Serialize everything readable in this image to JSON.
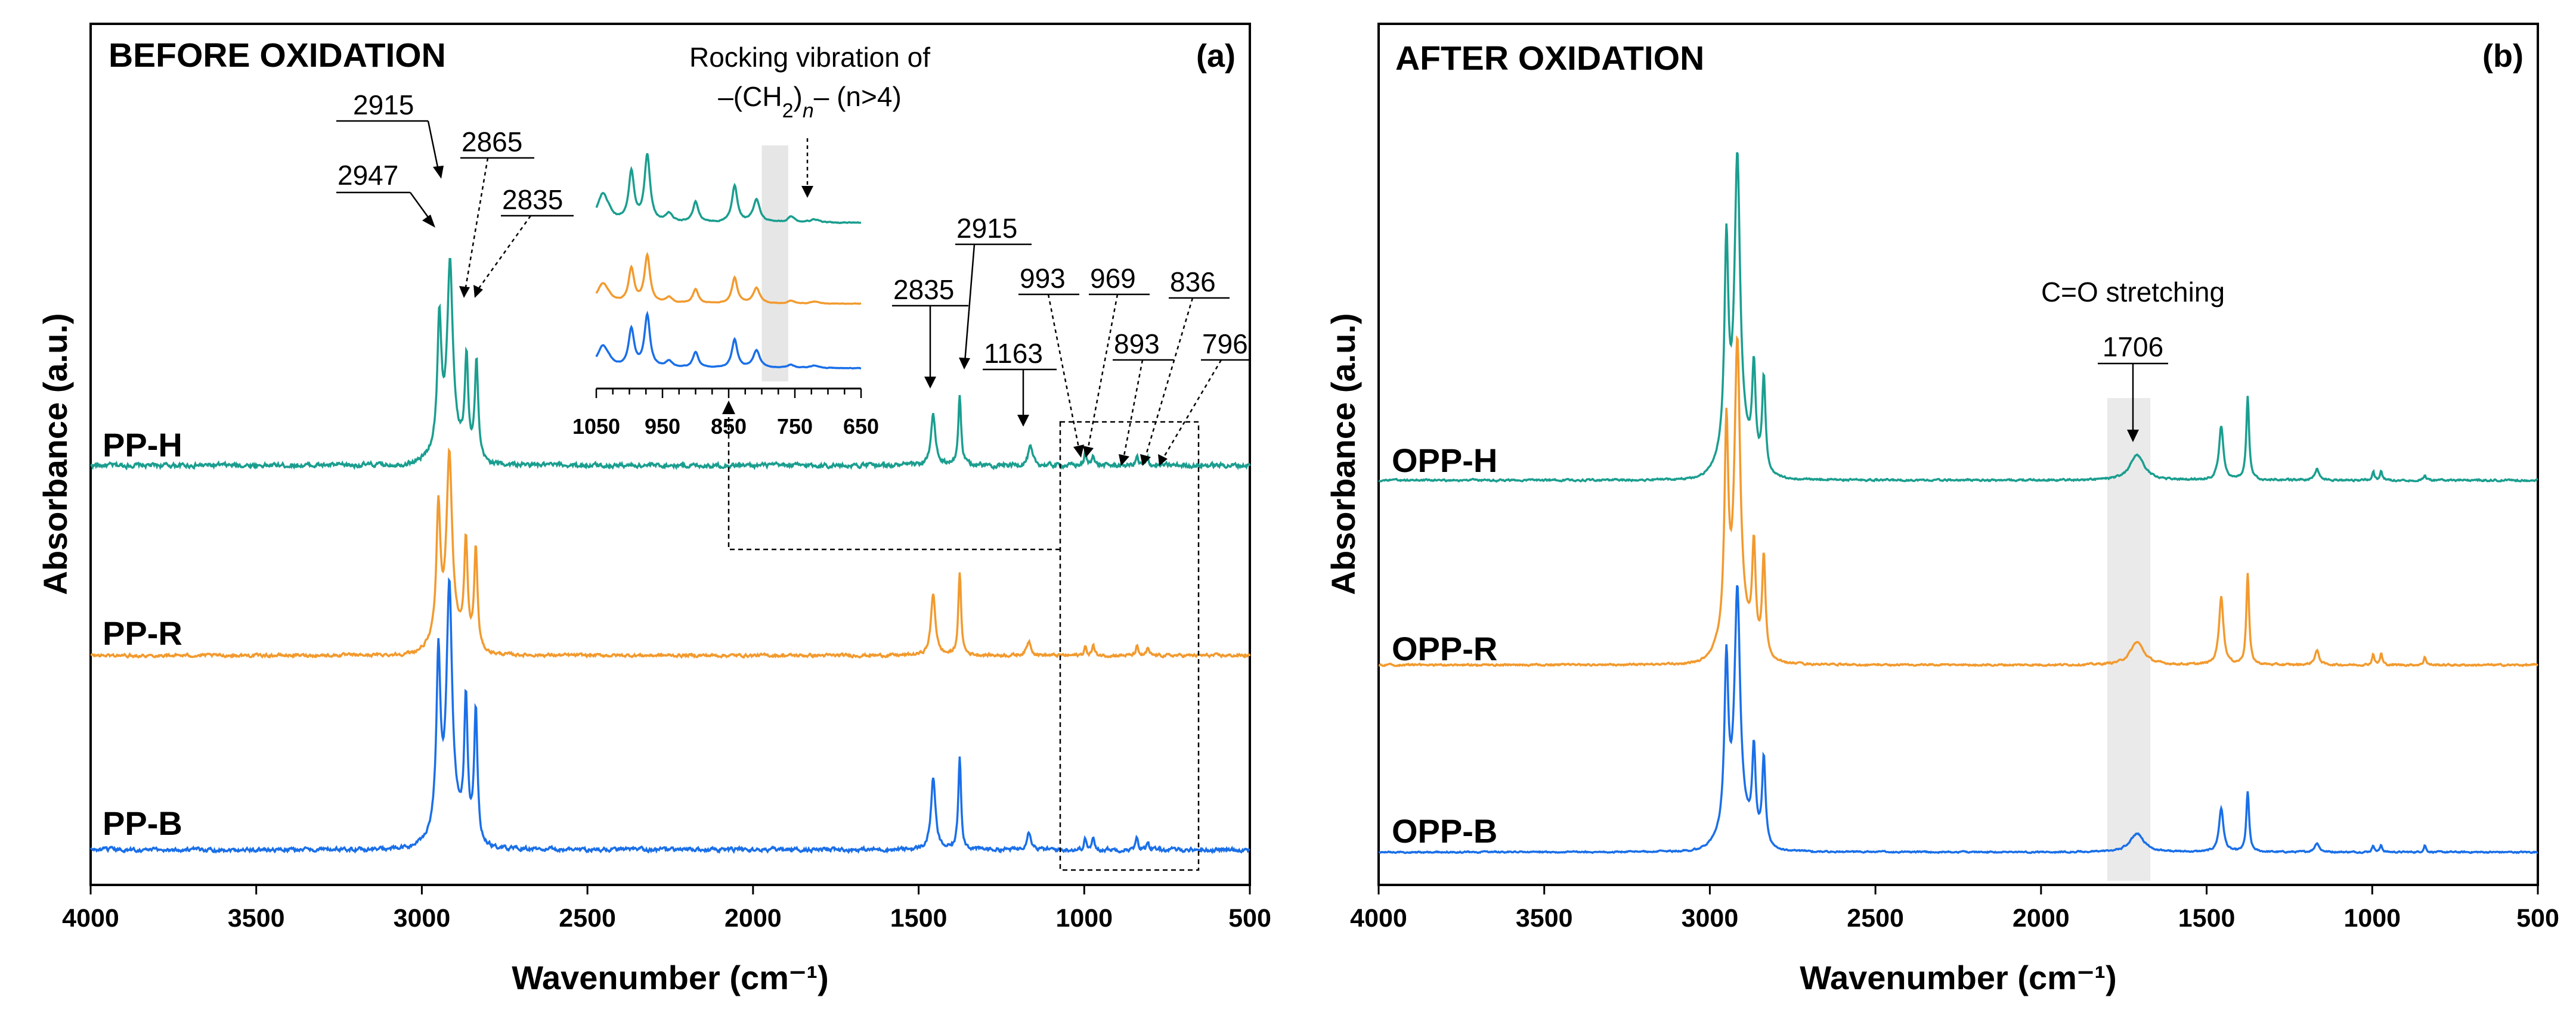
{
  "chart_data": [
    {
      "type": "line",
      "panel": "a",
      "title": "BEFORE OXIDATION",
      "letter": "(a)",
      "xlabel": "Wavenumber (cm⁻¹)",
      "ylabel": "Absorbance (a.u.)",
      "xlim": [
        4000,
        500
      ],
      "xticks": [
        "4000",
        "3500",
        "3000",
        "2500",
        "2000",
        "1500",
        "1000",
        "500"
      ],
      "series": [
        {
          "name": "PP-H",
          "color": "#1a9e8f",
          "offset": 2.0,
          "peaks": [
            [
              2947,
              0.72,
              7
            ],
            [
              2915,
              1.0,
              10
            ],
            [
              2865,
              0.55,
              6
            ],
            [
              2835,
              0.55,
              6
            ],
            [
              1456,
              0.28,
              8
            ],
            [
              1376,
              0.4,
              5
            ],
            [
              1163,
              0.1,
              8
            ],
            [
              997,
              0.07,
              4
            ],
            [
              973,
              0.07,
              4
            ],
            [
              841,
              0.05,
              4
            ],
            [
              808,
              0.04,
              4
            ]
          ],
          "noise": 0.012
        },
        {
          "name": "PP-R",
          "color": "#f29a2e",
          "offset": 1.0,
          "peaks": [
            [
              2950,
              0.72,
              7
            ],
            [
              2917,
              1.0,
              10
            ],
            [
              2867,
              0.57,
              6
            ],
            [
              2837,
              0.57,
              6
            ],
            [
              1456,
              0.35,
              8
            ],
            [
              1376,
              0.46,
              5
            ],
            [
              1167,
              0.08,
              8
            ],
            [
              997,
              0.05,
              4
            ],
            [
              973,
              0.06,
              4
            ],
            [
              841,
              0.05,
              4
            ],
            [
              808,
              0.04,
              4
            ]
          ],
          "noise": 0.008
        },
        {
          "name": "PP-B",
          "color": "#1a6fe8",
          "offset": 0.0,
          "peaks": [
            [
              2950,
              0.72,
              7
            ],
            [
              2917,
              1.0,
              10
            ],
            [
              2867,
              0.57,
              6
            ],
            [
              2837,
              0.57,
              6
            ],
            [
              1456,
              0.31,
              8
            ],
            [
              1376,
              0.4,
              5
            ],
            [
              1167,
              0.08,
              8
            ],
            [
              997,
              0.05,
              4
            ],
            [
              973,
              0.05,
              4
            ],
            [
              841,
              0.05,
              4
            ],
            [
              808,
              0.04,
              4
            ]
          ],
          "noise": 0.008
        }
      ],
      "peak_annotations": [
        "2947",
        "2915",
        "2865",
        "2835",
        "2835",
        "2915",
        "1163",
        "993",
        "969",
        "893",
        "836",
        "796"
      ],
      "inset": {
        "title_line1": "Rocking vibration of",
        "title_line2": "–(CH₂)ₙ– (n>4)",
        "xlim": [
          1050,
          650
        ],
        "xticks": [
          "1050",
          "950",
          "850",
          "750",
          "650"
        ],
        "highlight_range": [
          760,
          800
        ]
      }
    },
    {
      "type": "line",
      "panel": "b",
      "title": "AFTER OXIDATION",
      "letter": "(b)",
      "xlabel": "Wavenumber (cm⁻¹)",
      "ylabel": "Absorbance (a.u.)",
      "xlim": [
        4000,
        500
      ],
      "xticks": [
        "4000",
        "3500",
        "3000",
        "2500",
        "2000",
        "1500",
        "1000",
        "500"
      ],
      "series": [
        {
          "name": "OPP-H",
          "color": "#1a9e8f",
          "offset": 2.0,
          "peaks": [
            [
              2950,
              0.72,
              7
            ],
            [
              2917,
              1.0,
              10
            ],
            [
              2867,
              0.33,
              6
            ],
            [
              2837,
              0.33,
              6
            ],
            [
              1710,
              0.09,
              25
            ],
            [
              1456,
              0.19,
              8
            ],
            [
              1376,
              0.29,
              5
            ],
            [
              1167,
              0.04,
              8
            ],
            [
              997,
              0.03,
              4
            ],
            [
              973,
              0.03,
              4
            ],
            [
              841,
              0.02,
              4
            ]
          ],
          "noise": 0.003
        },
        {
          "name": "OPP-R",
          "color": "#f29a2e",
          "offset": 1.0,
          "peaks": [
            [
              2950,
              0.72,
              7
            ],
            [
              2917,
              1.0,
              10
            ],
            [
              2867,
              0.35,
              6
            ],
            [
              2837,
              0.35,
              6
            ],
            [
              1710,
              0.08,
              25
            ],
            [
              1456,
              0.24,
              8
            ],
            [
              1376,
              0.32,
              5
            ],
            [
              1167,
              0.05,
              8
            ],
            [
              997,
              0.04,
              4
            ],
            [
              973,
              0.04,
              4
            ],
            [
              841,
              0.03,
              4
            ]
          ],
          "noise": 0.003
        },
        {
          "name": "OPP-B",
          "color": "#1a6fe8",
          "offset": 0.0,
          "peaks": [
            [
              2950,
              0.72,
              7
            ],
            [
              2917,
              1.0,
              10
            ],
            [
              2867,
              0.38,
              6
            ],
            [
              2837,
              0.38,
              6
            ],
            [
              1710,
              0.08,
              25
            ],
            [
              1456,
              0.19,
              8
            ],
            [
              1376,
              0.26,
              5
            ],
            [
              1167,
              0.04,
              8
            ],
            [
              997,
              0.03,
              4
            ],
            [
              973,
              0.03,
              4
            ],
            [
              841,
              0.03,
              4
            ]
          ],
          "noise": 0.003
        }
      ],
      "annotation_title": "C=O stretching",
      "annotation_value": "1706",
      "highlight_range": [
        1800,
        1670
      ]
    }
  ]
}
